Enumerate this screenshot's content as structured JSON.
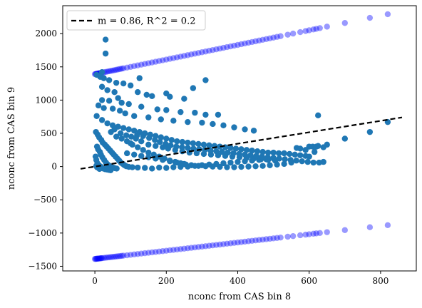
{
  "chart_data": {
    "type": "scatter",
    "xlabel": "nconc from CAS bin 8",
    "ylabel": "nconc from CAS bin 9",
    "xlim": [
      -90,
      900
    ],
    "ylim": [
      -1570,
      2420
    ],
    "xticks": [
      0,
      200,
      400,
      600,
      800
    ],
    "yticks": [
      -1500,
      -1000,
      -500,
      0,
      500,
      1000,
      1500,
      2000
    ],
    "xtick_labels": [
      "0",
      "200",
      "400",
      "600",
      "800"
    ],
    "ytick_labels": [
      "−1500",
      "−1000",
      "−500",
      "0",
      "500",
      "1000",
      "1500",
      "2000"
    ],
    "grid": false,
    "legend": {
      "placement": "top-left",
      "entries": [
        "m = 0.86, R^2 = 0.2"
      ]
    },
    "fit_line": {
      "slope": 0.86,
      "intercept": 0,
      "x": [
        -40,
        860
      ],
      "color": "#000000",
      "style": "dashed",
      "label": "m = 0.86, R^2 = 0.2"
    },
    "bands": [
      {
        "name": "upper band",
        "color": "#0000ff",
        "alpha": 0.4,
        "y_intercept": 1390,
        "slope": 1.1,
        "x": [
          0,
          2,
          4,
          6,
          8,
          10,
          12,
          14,
          16,
          18,
          20,
          25,
          30,
          35,
          40,
          45,
          50,
          55,
          60,
          65,
          70,
          75,
          80,
          90,
          100,
          110,
          120,
          130,
          140,
          150,
          160,
          170,
          180,
          190,
          200,
          210,
          220,
          230,
          240,
          250,
          260,
          270,
          280,
          290,
          300,
          310,
          320,
          330,
          340,
          350,
          360,
          370,
          380,
          390,
          400,
          410,
          420,
          430,
          440,
          450,
          460,
          470,
          480,
          490,
          500,
          510,
          520,
          540,
          555,
          575,
          590,
          600,
          612,
          620,
          630,
          650,
          700,
          770,
          820
        ]
      },
      {
        "name": "lower band",
        "color": "#0000ff",
        "alpha": 0.4,
        "y_intercept": -1390,
        "slope": 0.62,
        "x": [
          0,
          2,
          4,
          6,
          8,
          10,
          12,
          14,
          16,
          18,
          20,
          25,
          30,
          35,
          40,
          45,
          50,
          55,
          60,
          65,
          70,
          75,
          80,
          90,
          100,
          110,
          120,
          130,
          140,
          150,
          160,
          170,
          180,
          190,
          200,
          210,
          220,
          230,
          240,
          250,
          260,
          270,
          280,
          290,
          300,
          310,
          320,
          330,
          340,
          350,
          360,
          370,
          380,
          390,
          400,
          410,
          420,
          430,
          440,
          450,
          460,
          470,
          480,
          490,
          500,
          510,
          520,
          540,
          555,
          575,
          590,
          600,
          612,
          620,
          630,
          650,
          700,
          770,
          820
        ]
      }
    ],
    "series": [
      {
        "color": "#1f77b4",
        "points": [
          [
            30,
            1910
          ],
          [
            30,
            1700
          ],
          [
            20,
            1420
          ],
          [
            5,
            1380
          ],
          [
            15,
            1350
          ],
          [
            25,
            1330
          ],
          [
            40,
            1300
          ],
          [
            60,
            1260
          ],
          [
            80,
            1250
          ],
          [
            100,
            1220
          ],
          [
            125,
            1330
          ],
          [
            275,
            1180
          ],
          [
            310,
            1300
          ],
          [
            20,
            1200
          ],
          [
            35,
            1150
          ],
          [
            55,
            1120
          ],
          [
            65,
            1030
          ],
          [
            120,
            1120
          ],
          [
            145,
            1080
          ],
          [
            160,
            1060
          ],
          [
            200,
            1100
          ],
          [
            210,
            1050
          ],
          [
            250,
            1020
          ],
          [
            20,
            1000
          ],
          [
            40,
            990
          ],
          [
            75,
            960
          ],
          [
            95,
            940
          ],
          [
            130,
            900
          ],
          [
            175,
            860
          ],
          [
            200,
            850
          ],
          [
            240,
            820
          ],
          [
            280,
            810
          ],
          [
            310,
            780
          ],
          [
            345,
            780
          ],
          [
            10,
            920
          ],
          [
            25,
            880
          ],
          [
            50,
            870
          ],
          [
            70,
            840
          ],
          [
            85,
            800
          ],
          [
            110,
            760
          ],
          [
            150,
            740
          ],
          [
            185,
            710
          ],
          [
            220,
            690
          ],
          [
            260,
            670
          ],
          [
            300,
            660
          ],
          [
            330,
            640
          ],
          [
            360,
            620
          ],
          [
            390,
            590
          ],
          [
            420,
            560
          ],
          [
            445,
            540
          ],
          [
            5,
            760
          ],
          [
            20,
            700
          ],
          [
            35,
            650
          ],
          [
            50,
            620
          ],
          [
            65,
            600
          ],
          [
            80,
            580
          ],
          [
            95,
            560
          ],
          [
            110,
            540
          ],
          [
            125,
            520
          ],
          [
            140,
            500
          ],
          [
            155,
            480
          ],
          [
            170,
            460
          ],
          [
            185,
            440
          ],
          [
            200,
            420
          ],
          [
            215,
            400
          ],
          [
            230,
            380
          ],
          [
            245,
            370
          ],
          [
            260,
            360
          ],
          [
            275,
            350
          ],
          [
            290,
            340
          ],
          [
            305,
            330
          ],
          [
            320,
            320
          ],
          [
            335,
            310
          ],
          [
            350,
            300
          ],
          [
            365,
            290
          ],
          [
            380,
            280
          ],
          [
            395,
            270
          ],
          [
            410,
            260
          ],
          [
            425,
            250
          ],
          [
            440,
            240
          ],
          [
            455,
            230
          ],
          [
            470,
            220
          ],
          [
            485,
            210
          ],
          [
            500,
            210
          ],
          [
            515,
            200
          ],
          [
            530,
            200
          ],
          [
            545,
            190
          ],
          [
            560,
            180
          ],
          [
            575,
            170
          ],
          [
            590,
            160
          ],
          [
            600,
            150
          ],
          [
            565,
            280
          ],
          [
            575,
            270
          ],
          [
            590,
            250
          ],
          [
            600,
            300
          ],
          [
            610,
            300
          ],
          [
            620,
            300
          ],
          [
            625,
            310
          ],
          [
            640,
            290
          ],
          [
            650,
            330
          ],
          [
            615,
            220
          ],
          [
            700,
            420
          ],
          [
            770,
            520
          ],
          [
            820,
            670
          ],
          [
            625,
            770
          ],
          [
            3,
            520
          ],
          [
            8,
            480
          ],
          [
            12,
            440
          ],
          [
            18,
            400
          ],
          [
            22,
            360
          ],
          [
            28,
            330
          ],
          [
            33,
            300
          ],
          [
            38,
            270
          ],
          [
            43,
            240
          ],
          [
            48,
            210
          ],
          [
            53,
            180
          ],
          [
            58,
            150
          ],
          [
            63,
            120
          ],
          [
            68,
            90
          ],
          [
            73,
            60
          ],
          [
            78,
            40
          ],
          [
            83,
            20
          ],
          [
            88,
            5
          ],
          [
            95,
            -5
          ],
          [
            105,
            -10
          ],
          [
            120,
            -15
          ],
          [
            140,
            -20
          ],
          [
            160,
            -30
          ],
          [
            180,
            -15
          ],
          [
            200,
            -20
          ],
          [
            220,
            -10
          ],
          [
            240,
            -5
          ],
          [
            260,
            0
          ],
          [
            280,
            10
          ],
          [
            300,
            20
          ],
          [
            320,
            30
          ],
          [
            340,
            40
          ],
          [
            360,
            50
          ],
          [
            380,
            60
          ],
          [
            400,
            70
          ],
          [
            420,
            80
          ],
          [
            440,
            90
          ],
          [
            460,
            100
          ],
          [
            480,
            110
          ],
          [
            500,
            120
          ],
          [
            6,
            300
          ],
          [
            9,
            260
          ],
          [
            14,
            220
          ],
          [
            17,
            180
          ],
          [
            21,
            140
          ],
          [
            26,
            100
          ],
          [
            31,
            60
          ],
          [
            36,
            30
          ],
          [
            41,
            10
          ],
          [
            46,
            -5
          ],
          [
            51,
            -15
          ],
          [
            56,
            -25
          ],
          [
            61,
            -30
          ],
          [
            2,
            150
          ],
          [
            4,
            100
          ],
          [
            7,
            50
          ],
          [
            11,
            20
          ],
          [
            16,
            0
          ],
          [
            19,
            -20
          ],
          [
            24,
            -30
          ],
          [
            29,
            -40
          ],
          [
            34,
            -45
          ],
          [
            39,
            -50
          ],
          [
            44,
            -55
          ],
          [
            4,
            10
          ],
          [
            6,
            -10
          ],
          [
            10,
            -20
          ],
          [
            13,
            -35
          ],
          [
            100,
            350
          ],
          [
            115,
            420
          ],
          [
            130,
            380
          ],
          [
            150,
            330
          ],
          [
            170,
            310
          ],
          [
            190,
            290
          ],
          [
            205,
            270
          ],
          [
            225,
            250
          ],
          [
            245,
            230
          ],
          [
            265,
            210
          ],
          [
            285,
            200
          ],
          [
            305,
            190
          ],
          [
            325,
            180
          ],
          [
            345,
            170
          ],
          [
            365,
            160
          ],
          [
            385,
            150
          ],
          [
            405,
            140
          ],
          [
            425,
            130
          ],
          [
            445,
            120
          ],
          [
            465,
            110
          ],
          [
            485,
            100
          ],
          [
            505,
            90
          ],
          [
            90,
            200
          ],
          [
            110,
            180
          ],
          [
            130,
            160
          ],
          [
            150,
            140
          ],
          [
            170,
            120
          ],
          [
            190,
            100
          ],
          [
            210,
            80
          ],
          [
            230,
            60
          ],
          [
            250,
            40
          ],
          [
            270,
            20
          ],
          [
            290,
            10
          ],
          [
            310,
            5
          ],
          [
            330,
            0
          ],
          [
            350,
            -5
          ],
          [
            370,
            -10
          ],
          [
            390,
            -10
          ],
          [
            410,
            -5
          ],
          [
            430,
            0
          ],
          [
            450,
            5
          ],
          [
            470,
            10
          ],
          [
            490,
            20
          ],
          [
            510,
            30
          ],
          [
            530,
            40
          ],
          [
            550,
            60
          ],
          [
            60,
            450
          ],
          [
            75,
            420
          ],
          [
            90,
            380
          ],
          [
            105,
            330
          ],
          [
            120,
            290
          ],
          [
            135,
            250
          ],
          [
            150,
            210
          ],
          [
            165,
            180
          ],
          [
            180,
            150
          ],
          [
            195,
            120
          ],
          [
            210,
            90
          ],
          [
            225,
            70
          ],
          [
            240,
            50
          ],
          [
            255,
            30
          ],
          [
            45,
            520
          ],
          [
            55,
            560
          ],
          [
            72,
            500
          ],
          [
            88,
            470
          ],
          [
            102,
            450
          ],
          [
            118,
            470
          ],
          [
            135,
            460
          ],
          [
            152,
            430
          ],
          [
            168,
            400
          ],
          [
            182,
            370
          ],
          [
            198,
            340
          ],
          [
            212,
            320
          ],
          [
            228,
            300
          ],
          [
            244,
            290
          ],
          [
            260,
            280
          ],
          [
            276,
            270
          ],
          [
            292,
            260
          ],
          [
            308,
            250
          ],
          [
            324,
            240
          ],
          [
            340,
            230
          ],
          [
            356,
            220
          ],
          [
            372,
            210
          ],
          [
            388,
            200
          ],
          [
            404,
            190
          ],
          [
            420,
            180
          ],
          [
            436,
            170
          ],
          [
            452,
            160
          ],
          [
            468,
            150
          ],
          [
            484,
            140
          ],
          [
            500,
            130
          ],
          [
            516,
            120
          ],
          [
            532,
            110
          ],
          [
            548,
            100
          ],
          [
            564,
            90
          ],
          [
            580,
            80
          ],
          [
            596,
            70
          ],
          [
            612,
            60
          ],
          [
            628,
            60
          ],
          [
            640,
            70
          ]
        ]
      }
    ]
  }
}
